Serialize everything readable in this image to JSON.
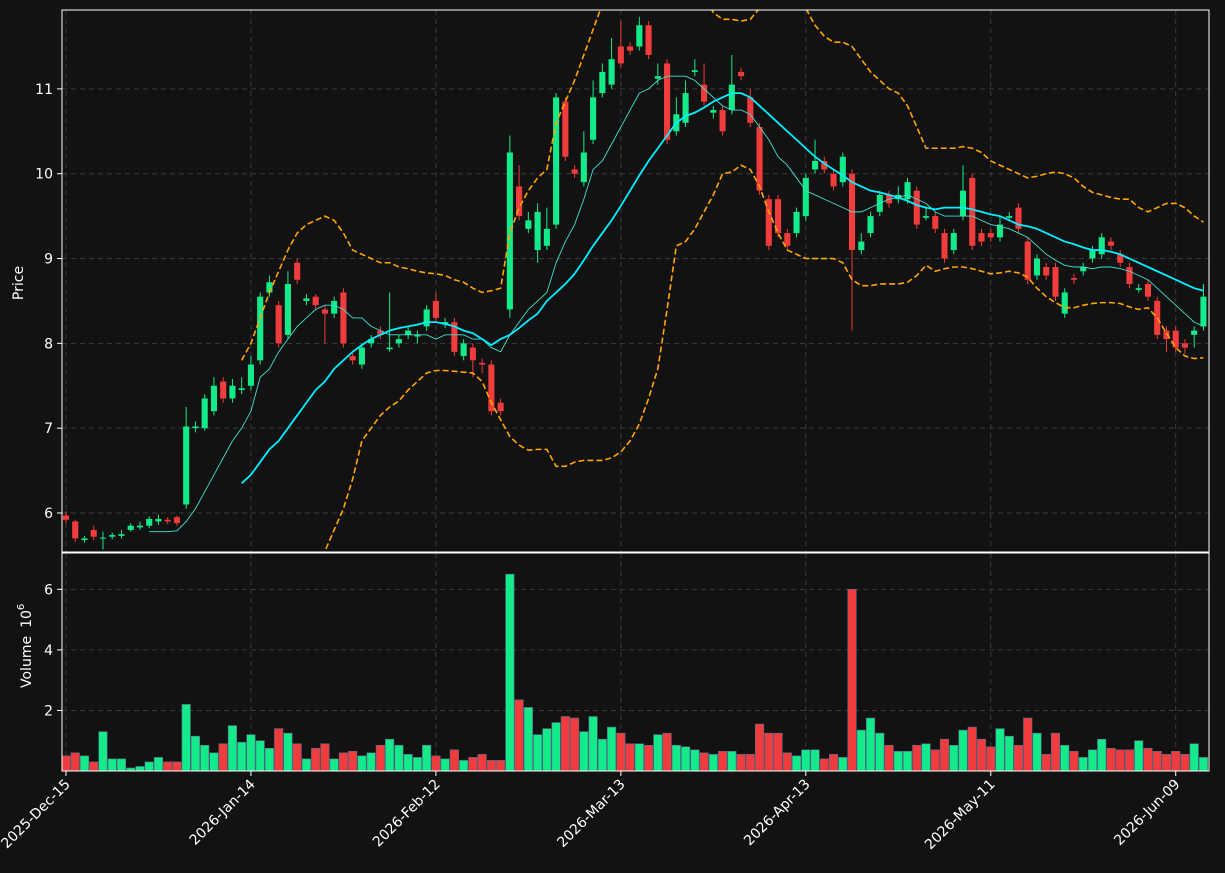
{
  "chart_data": {
    "type": "candlestick",
    "categories": [
      "2025-Dec-15",
      null,
      null,
      null,
      null,
      null,
      null,
      null,
      null,
      null,
      null,
      null,
      null,
      null,
      null,
      null,
      null,
      null,
      null,
      null,
      "2026-Jan-14",
      null,
      null,
      null,
      null,
      null,
      null,
      null,
      null,
      null,
      null,
      null,
      null,
      null,
      null,
      null,
      null,
      null,
      null,
      null,
      "2026-Feb-12",
      null,
      null,
      null,
      null,
      null,
      null,
      null,
      null,
      null,
      null,
      null,
      null,
      null,
      null,
      null,
      null,
      null,
      null,
      null,
      "2026-Mar-13",
      null,
      null,
      null,
      null,
      null,
      null,
      null,
      null,
      null,
      null,
      null,
      null,
      null,
      null,
      null,
      null,
      null,
      null,
      null,
      "2026-Apr-13",
      null,
      null,
      null,
      null,
      null,
      null,
      null,
      null,
      null,
      null,
      null,
      null,
      null,
      null,
      null,
      null,
      null,
      null,
      null,
      "2026-May-11",
      null,
      null,
      null,
      null,
      null,
      null,
      null,
      null,
      null,
      null,
      null,
      null,
      null,
      null,
      null,
      null,
      null,
      null,
      null,
      "2026-Jun-09",
      null,
      null,
      null
    ],
    "open": [
      5.97,
      5.9,
      5.68,
      5.8,
      5.7,
      5.72,
      5.73,
      5.8,
      5.83,
      5.85,
      5.9,
      5.92,
      5.95,
      6.1,
      7.0,
      7.0,
      7.2,
      7.55,
      7.35,
      7.45,
      7.5,
      7.8,
      8.6,
      8.45,
      8.1,
      8.95,
      8.5,
      8.55,
      8.4,
      8.35,
      8.6,
      7.85,
      7.75,
      8.0,
      8.15,
      7.93,
      8.0,
      8.1,
      8.08,
      8.2,
      8.5,
      8.22,
      8.25,
      7.85,
      7.95,
      7.77,
      7.75,
      7.3,
      8.4,
      9.85,
      9.35,
      9.1,
      9.15,
      9.4,
      10.85,
      10.05,
      9.9,
      10.4,
      10.95,
      11.05,
      11.5,
      11.5,
      11.5,
      11.75,
      11.12,
      11.3,
      10.5,
      10.6,
      11.2,
      11.05,
      10.72,
      10.75,
      10.75,
      11.2,
      10.9,
      10.55,
      9.7,
      9.7,
      9.3,
      9.3,
      9.5,
      10.05,
      10.15,
      10.0,
      9.9,
      10.0,
      9.1,
      9.3,
      9.55,
      9.75,
      9.7,
      9.7,
      9.8,
      9.48,
      9.5,
      9.3,
      9.1,
      9.5,
      9.95,
      9.3,
      9.3,
      9.25,
      9.48,
      9.6,
      9.2,
      8.8,
      8.9,
      8.9,
      8.35,
      8.77,
      8.85,
      9.0,
      9.05,
      9.2,
      9.05,
      8.9,
      8.63,
      8.7,
      8.5,
      8.15,
      8.15,
      8.0,
      8.1,
      8.2
    ],
    "high": [
      6.02,
      5.92,
      5.73,
      5.85,
      5.78,
      5.77,
      5.8,
      5.88,
      5.9,
      5.96,
      5.98,
      5.95,
      5.97,
      7.25,
      7.08,
      7.4,
      7.6,
      7.6,
      7.58,
      7.6,
      7.85,
      8.6,
      8.8,
      8.5,
      8.85,
      9.0,
      8.58,
      8.58,
      8.45,
      8.55,
      8.65,
      7.9,
      8.0,
      8.1,
      8.2,
      8.6,
      8.1,
      8.2,
      8.15,
      8.45,
      8.6,
      8.3,
      8.3,
      8.05,
      8.0,
      7.82,
      7.8,
      7.35,
      10.45,
      10.1,
      9.55,
      9.65,
      9.6,
      10.95,
      10.9,
      10.1,
      10.5,
      11.1,
      11.3,
      11.6,
      11.8,
      11.55,
      11.85,
      11.8,
      11.3,
      11.35,
      10.9,
      11.1,
      11.35,
      11.3,
      10.8,
      10.8,
      11.4,
      11.25,
      11.0,
      10.6,
      9.75,
      9.75,
      9.35,
      9.6,
      10.0,
      10.4,
      10.2,
      10.05,
      10.25,
      10.05,
      9.3,
      9.55,
      9.8,
      9.8,
      9.85,
      9.95,
      9.85,
      9.6,
      9.55,
      9.35,
      9.35,
      10.1,
      10.0,
      9.35,
      9.35,
      9.5,
      9.55,
      9.65,
      9.25,
      9.05,
      8.95,
      8.95,
      8.65,
      8.82,
      8.95,
      9.15,
      9.3,
      9.25,
      9.1,
      8.95,
      8.7,
      8.75,
      8.55,
      8.2,
      8.2,
      8.05,
      8.2,
      8.7
    ],
    "low": [
      5.88,
      5.66,
      5.65,
      5.68,
      5.57,
      5.69,
      5.7,
      5.78,
      5.8,
      5.82,
      5.86,
      5.87,
      5.85,
      6.05,
      6.95,
      6.97,
      7.15,
      7.3,
      7.3,
      7.4,
      7.45,
      7.75,
      8.55,
      7.95,
      8.05,
      8.7,
      8.45,
      8.4,
      8.0,
      8.3,
      7.95,
      7.75,
      7.7,
      7.95,
      8.05,
      7.9,
      7.95,
      8.05,
      8.0,
      8.15,
      8.25,
      8.18,
      7.85,
      7.8,
      7.6,
      7.65,
      7.15,
      7.15,
      8.3,
      9.45,
      9.3,
      8.95,
      9.1,
      9.35,
      10.15,
      9.95,
      9.85,
      10.35,
      10.9,
      11.0,
      11.25,
      11.4,
      11.45,
      11.35,
      11.05,
      10.35,
      10.45,
      10.55,
      11.15,
      10.8,
      10.65,
      10.45,
      10.7,
      11.1,
      10.55,
      9.75,
      9.1,
      9.25,
      9.1,
      9.25,
      9.45,
      10.0,
      10.0,
      9.8,
      9.85,
      8.15,
      9.05,
      9.25,
      9.5,
      9.6,
      9.65,
      9.65,
      9.35,
      9.45,
      9.3,
      8.95,
      9.05,
      9.45,
      9.1,
      9.15,
      9.2,
      9.2,
      9.45,
      9.3,
      8.7,
      8.75,
      8.75,
      8.5,
      8.3,
      8.7,
      8.8,
      8.95,
      9.0,
      9.1,
      8.9,
      8.65,
      8.6,
      8.5,
      8.05,
      7.9,
      7.9,
      7.88,
      7.95,
      8.15
    ],
    "close": [
      5.92,
      5.7,
      5.7,
      5.72,
      5.71,
      5.74,
      5.75,
      5.85,
      5.85,
      5.93,
      5.93,
      5.9,
      5.88,
      7.02,
      7.02,
      7.35,
      7.5,
      7.35,
      7.5,
      7.47,
      7.75,
      8.55,
      8.72,
      8.0,
      8.7,
      8.75,
      8.53,
      8.45,
      8.35,
      8.5,
      8.0,
      7.8,
      7.95,
      8.05,
      8.1,
      7.95,
      8.05,
      8.15,
      8.1,
      8.4,
      8.3,
      8.25,
      7.9,
      8.0,
      7.8,
      7.75,
      7.2,
      7.2,
      10.25,
      9.5,
      9.45,
      9.55,
      9.35,
      10.9,
      10.2,
      10.0,
      10.25,
      10.9,
      11.2,
      11.35,
      11.3,
      11.45,
      11.75,
      11.4,
      11.15,
      10.4,
      10.7,
      10.95,
      11.22,
      10.85,
      10.75,
      10.5,
      11.05,
      11.15,
      10.6,
      9.8,
      9.15,
      9.3,
      9.15,
      9.55,
      9.95,
      10.15,
      10.05,
      9.85,
      10.2,
      9.1,
      9.2,
      9.5,
      9.75,
      9.65,
      9.75,
      9.9,
      9.4,
      9.5,
      9.35,
      9.0,
      9.3,
      9.8,
      9.15,
      9.2,
      9.25,
      9.4,
      9.5,
      9.35,
      8.75,
      9.0,
      8.8,
      8.55,
      8.6,
      8.75,
      8.9,
      9.1,
      9.25,
      9.15,
      8.95,
      8.7,
      8.65,
      8.55,
      8.1,
      8.05,
      7.95,
      7.95,
      8.15,
      8.55
    ],
    "volume": [
      0.5,
      0.6,
      0.5,
      0.3,
      1.3,
      0.4,
      0.4,
      0.1,
      0.15,
      0.3,
      0.45,
      0.3,
      0.3,
      2.2,
      1.15,
      0.85,
      0.6,
      0.9,
      1.5,
      0.95,
      1.2,
      1.0,
      0.75,
      1.4,
      1.25,
      0.9,
      0.4,
      0.75,
      0.9,
      0.4,
      0.6,
      0.65,
      0.5,
      0.6,
      0.85,
      1.05,
      0.85,
      0.55,
      0.45,
      0.85,
      0.5,
      0.4,
      0.7,
      0.35,
      0.45,
      0.55,
      0.35,
      0.35,
      6.5,
      2.35,
      2.1,
      1.2,
      1.4,
      1.6,
      1.8,
      1.75,
      1.3,
      1.8,
      1.05,
      1.45,
      1.25,
      0.9,
      0.9,
      0.85,
      1.2,
      1.25,
      0.85,
      0.8,
      0.7,
      0.6,
      0.55,
      0.65,
      0.65,
      0.55,
      0.55,
      1.55,
      1.25,
      1.25,
      0.6,
      0.5,
      0.7,
      0.7,
      0.4,
      0.55,
      0.45,
      6.0,
      1.35,
      1.75,
      1.25,
      0.85,
      0.65,
      0.65,
      0.85,
      0.9,
      0.7,
      1.05,
      0.85,
      1.35,
      1.45,
      1.05,
      0.8,
      1.4,
      1.15,
      0.85,
      1.75,
      1.25,
      0.55,
      1.25,
      0.85,
      0.65,
      0.45,
      0.7,
      1.05,
      0.75,
      0.7,
      0.7,
      1.0,
      0.75,
      0.65,
      0.55,
      0.65,
      0.55,
      0.9,
      0.45
    ],
    "overlays": [
      {
        "color": "#40e0d0",
        "width": 0.9,
        "dashed": false,
        "values": [
          null,
          null,
          null,
          null,
          null,
          null,
          null,
          null,
          null,
          5.78,
          5.78,
          5.78,
          5.79,
          5.9,
          6.05,
          6.25,
          6.45,
          6.65,
          6.85,
          7.0,
          7.2,
          7.6,
          7.7,
          7.9,
          8.05,
          8.2,
          8.3,
          8.4,
          8.45,
          8.45,
          8.4,
          8.3,
          8.3,
          8.2,
          8.15,
          8.1,
          8.1,
          8.1,
          8.1,
          8.1,
          8.05,
          8.1,
          8.1,
          8.1,
          8.05,
          8.05,
          7.95,
          7.9,
          8.1,
          8.25,
          8.4,
          8.5,
          8.6,
          8.95,
          9.2,
          9.4,
          9.7,
          10.05,
          10.15,
          10.35,
          10.55,
          10.75,
          10.95,
          11.0,
          11.1,
          11.15,
          11.15,
          11.15,
          11.1,
          11.0,
          10.9,
          10.8,
          10.75,
          10.75,
          10.7,
          10.55,
          10.4,
          10.2,
          10.1,
          9.95,
          9.8,
          9.75,
          9.7,
          9.65,
          9.6,
          9.55,
          9.55,
          9.6,
          9.65,
          9.7,
          9.72,
          9.75,
          9.7,
          9.65,
          9.55,
          9.5,
          9.5,
          9.5,
          9.5,
          9.45,
          9.4,
          9.38,
          9.35,
          9.3,
          9.25,
          9.15,
          9.05,
          8.98,
          8.92,
          8.9,
          8.9,
          8.88,
          8.9,
          8.9,
          8.88,
          8.85,
          8.8,
          8.75,
          8.65,
          8.55,
          8.45,
          8.35,
          8.25,
          8.2
        ]
      },
      {
        "color": "#00f0ff",
        "width": 1.8,
        "dashed": false,
        "values": [
          null,
          null,
          null,
          null,
          null,
          null,
          null,
          null,
          null,
          null,
          null,
          null,
          null,
          null,
          null,
          null,
          null,
          null,
          null,
          6.35,
          6.45,
          6.6,
          6.75,
          6.85,
          7.0,
          7.15,
          7.3,
          7.45,
          7.55,
          7.7,
          7.8,
          7.9,
          7.98,
          8.05,
          8.1,
          8.15,
          8.18,
          8.2,
          8.22,
          8.25,
          8.25,
          8.23,
          8.2,
          8.15,
          8.12,
          8.05,
          7.98,
          8.05,
          8.1,
          8.18,
          8.27,
          8.35,
          8.5,
          8.6,
          8.7,
          8.82,
          8.98,
          9.15,
          9.3,
          9.45,
          9.62,
          9.8,
          9.98,
          10.15,
          10.3,
          10.45,
          10.6,
          10.68,
          10.72,
          10.78,
          10.85,
          10.9,
          10.95,
          10.95,
          10.9,
          10.8,
          10.7,
          10.6,
          10.5,
          10.4,
          10.3,
          10.2,
          10.12,
          10.05,
          9.98,
          9.9,
          9.85,
          9.8,
          9.78,
          9.75,
          9.72,
          9.68,
          9.63,
          9.6,
          9.58,
          9.6,
          9.6,
          9.6,
          9.58,
          9.55,
          9.52,
          9.5,
          9.45,
          9.4,
          9.38,
          9.35,
          9.3,
          9.25,
          9.2,
          9.17,
          9.13,
          9.1,
          9.1,
          9.08,
          9.05,
          9.0,
          8.95,
          8.9,
          8.85,
          8.8,
          8.75,
          8.7,
          8.65,
          8.62
        ]
      },
      {
        "color": "#ffa500",
        "width": 1.6,
        "dashed": true,
        "values": [
          null,
          null,
          null,
          null,
          null,
          null,
          null,
          null,
          null,
          null,
          null,
          null,
          null,
          null,
          null,
          null,
          null,
          null,
          null,
          7.8,
          8.0,
          8.3,
          8.6,
          8.85,
          9.1,
          9.3,
          9.4,
          9.45,
          9.5,
          9.45,
          9.3,
          9.1,
          9.05,
          9.0,
          8.95,
          8.95,
          8.9,
          8.88,
          8.85,
          8.83,
          8.82,
          8.8,
          8.75,
          8.72,
          8.65,
          8.6,
          8.62,
          8.65,
          9.3,
          9.6,
          9.8,
          9.95,
          10.05,
          10.6,
          10.85,
          11.1,
          11.4,
          11.7,
          12.0,
          12.3,
          12.5,
          12.7,
          12.9,
          13.0,
          13.0,
          12.9,
          12.8,
          12.6,
          12.3,
          12.1,
          11.9,
          11.82,
          11.82,
          11.8,
          11.82,
          11.95,
          12.1,
          12.2,
          12.2,
          12.1,
          11.95,
          11.75,
          11.62,
          11.55,
          11.55,
          11.5,
          11.35,
          11.2,
          11.1,
          11.0,
          10.95,
          10.8,
          10.55,
          10.3,
          10.3,
          10.3,
          10.3,
          10.32,
          10.3,
          10.25,
          10.15,
          10.1,
          10.05,
          10.0,
          9.95,
          9.97,
          10.0,
          10.02,
          10.0,
          9.95,
          9.85,
          9.78,
          9.75,
          9.72,
          9.7,
          9.7,
          9.6,
          9.55,
          9.6,
          9.65,
          9.65,
          9.6,
          9.5,
          9.43
        ]
      },
      {
        "color": "#ffa500",
        "width": 1.6,
        "dashed": true,
        "values": [
          null,
          null,
          null,
          null,
          null,
          null,
          null,
          null,
          null,
          null,
          null,
          null,
          null,
          null,
          null,
          null,
          null,
          null,
          null,
          4.9,
          4.9,
          4.9,
          4.95,
          5.0,
          5.05,
          5.15,
          5.3,
          5.4,
          5.55,
          5.8,
          6.05,
          6.4,
          6.85,
          7.0,
          7.15,
          7.25,
          7.32,
          7.45,
          7.55,
          7.65,
          7.68,
          7.68,
          7.67,
          7.66,
          7.65,
          7.55,
          7.3,
          7.1,
          6.9,
          6.8,
          6.74,
          6.75,
          6.75,
          6.55,
          6.55,
          6.6,
          6.62,
          6.62,
          6.62,
          6.65,
          6.72,
          6.85,
          7.05,
          7.35,
          7.7,
          8.4,
          9.15,
          9.2,
          9.35,
          9.55,
          9.75,
          10.0,
          10.02,
          10.1,
          10.05,
          9.85,
          9.55,
          9.3,
          9.1,
          9.05,
          9.0,
          9.0,
          9.0,
          9.0,
          8.95,
          8.75,
          8.68,
          8.68,
          8.7,
          8.7,
          8.7,
          8.72,
          8.8,
          8.92,
          8.85,
          8.88,
          8.9,
          8.9,
          8.88,
          8.85,
          8.82,
          8.83,
          8.85,
          8.83,
          8.78,
          8.65,
          8.55,
          8.48,
          8.42,
          8.42,
          8.45,
          8.47,
          8.48,
          8.48,
          8.47,
          8.43,
          8.4,
          8.42,
          8.3,
          8.12,
          7.95,
          7.85,
          7.82,
          7.83
        ]
      }
    ],
    "up_color": "#13ea8a",
    "down_color": "#f03c3c",
    "xlim": [
      -0.43,
      123.6
    ],
    "ylim": [
      5.54,
      11.93
    ],
    "yticks": [
      6,
      7,
      8,
      9,
      10,
      11
    ],
    "ylabel": "Price",
    "volume_ylim": [
      0,
      7.2
    ],
    "volume_yticks": [
      2,
      4,
      6
    ],
    "volume_ylabel": "Volume",
    "volume_unit_base": "10",
    "volume_unit_exponent": "6",
    "grid": true
  }
}
